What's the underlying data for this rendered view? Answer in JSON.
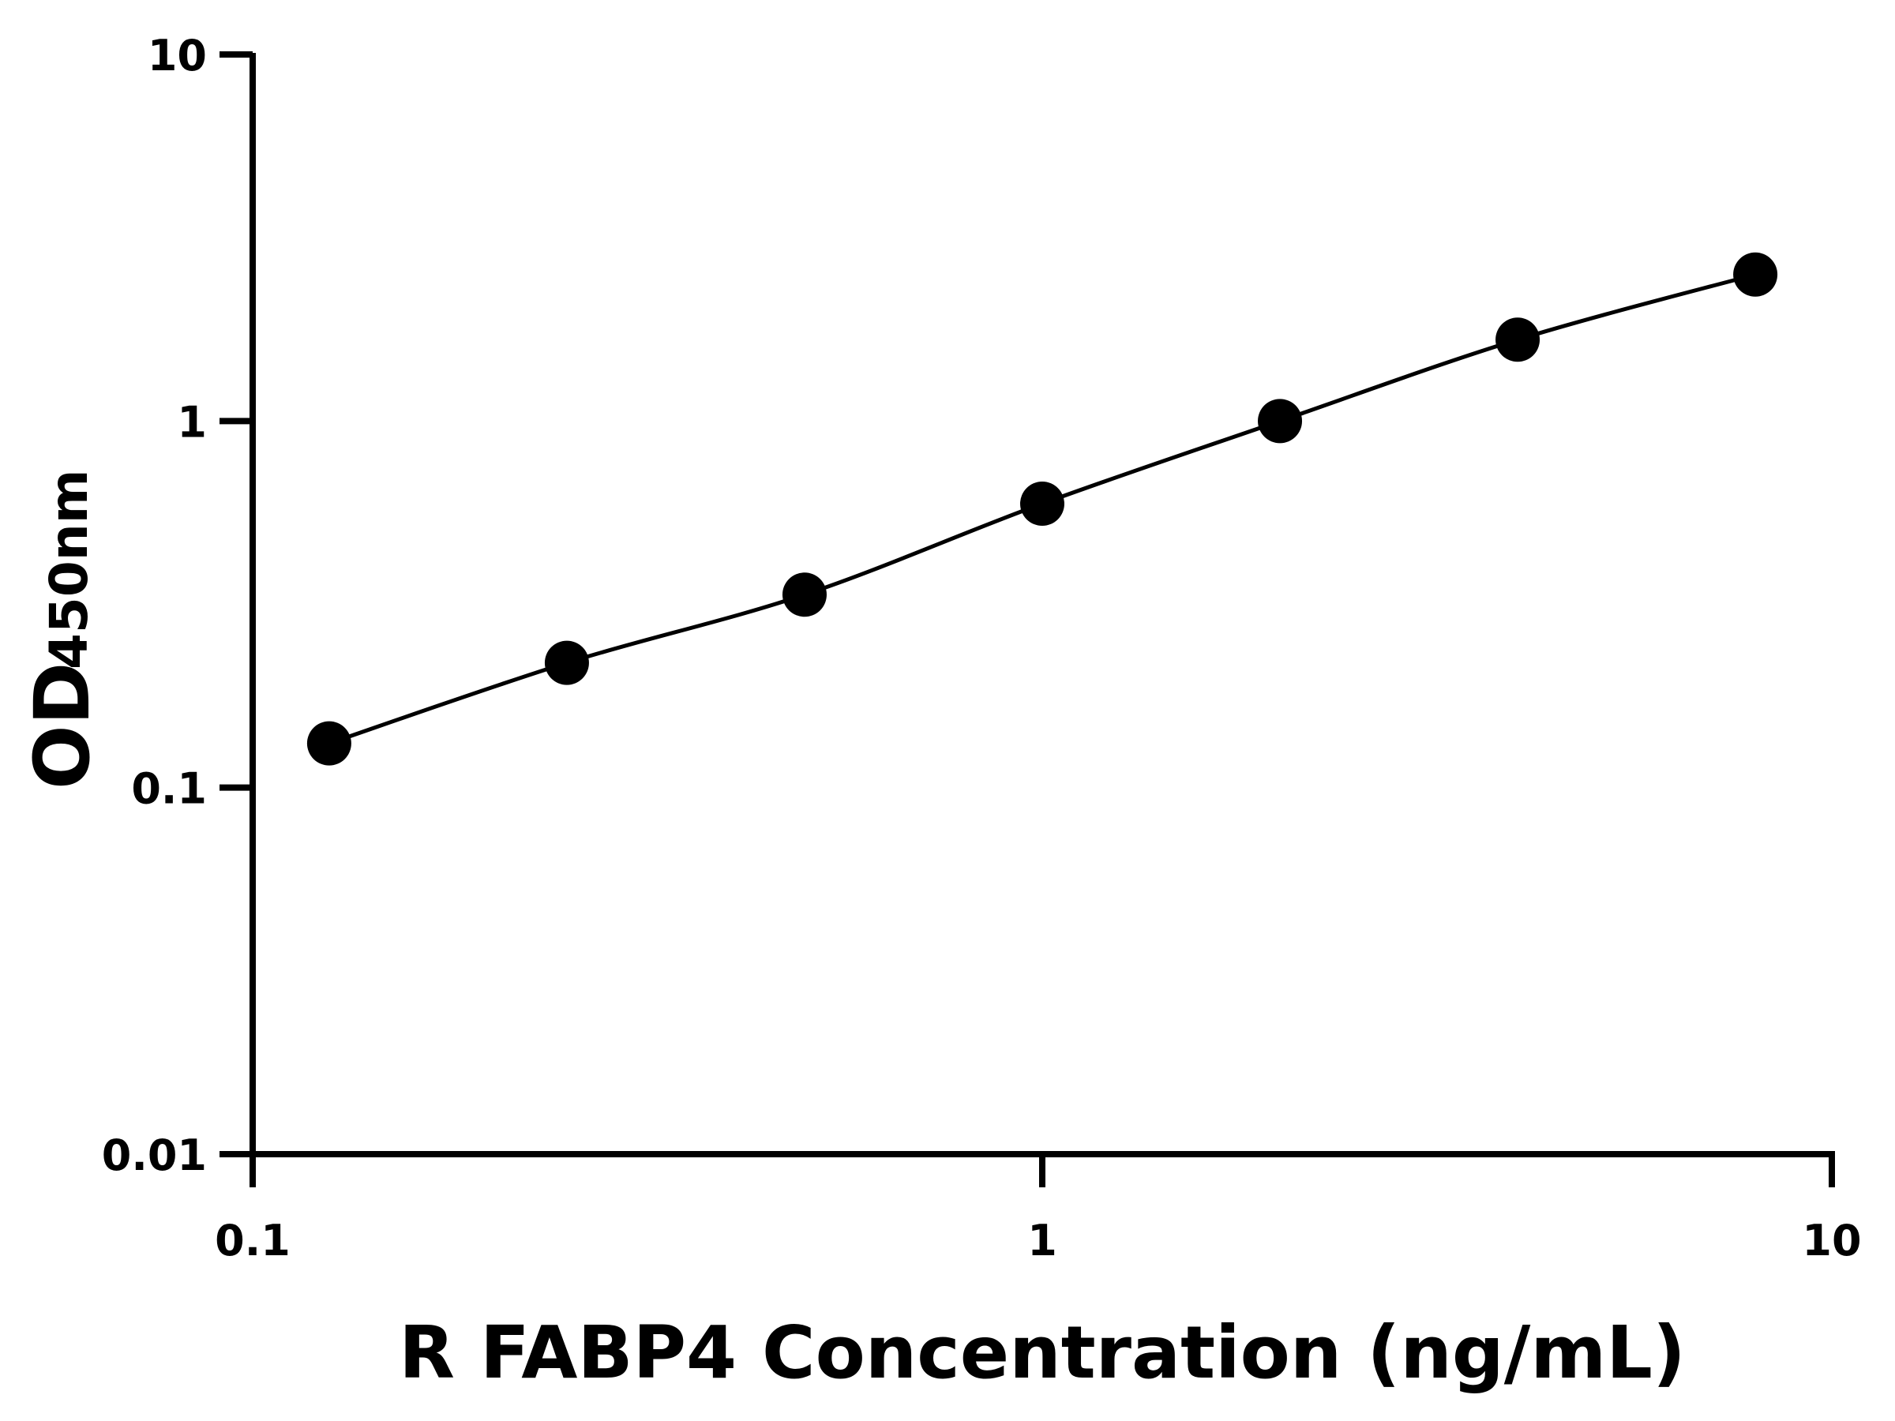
{
  "chart_data": {
    "type": "line",
    "title": "",
    "xlabel": "R FABP4 Concentration (ng/mL)",
    "ylabel_main": "OD",
    "ylabel_sub": "450nm",
    "x_scale": "log",
    "y_scale": "log",
    "xlim": [
      0.1,
      10
    ],
    "ylim": [
      0.01,
      10
    ],
    "x_ticks": [
      "0.1",
      "1",
      "10"
    ],
    "y_ticks": [
      "0.01",
      "0.1",
      "1",
      "10"
    ],
    "grid": false,
    "series": [
      {
        "x": [
          0.125,
          0.25,
          0.5,
          1,
          2,
          4,
          8
        ],
        "y": [
          0.132,
          0.219,
          0.336,
          0.595,
          1.0,
          1.667,
          2.51
        ],
        "marker": "filled-circle",
        "color": "#000000"
      }
    ]
  }
}
